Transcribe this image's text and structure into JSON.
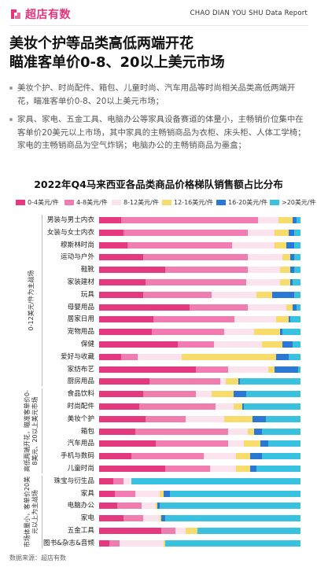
{
  "header": {
    "logo_text": "超店有数",
    "report_tag": "CHAO DIAN YOU SHU Data Report",
    "logo_color": "#e6347c"
  },
  "title": {
    "line1": "美妆个护等品类高低两端开花",
    "line2": "瞄准客单价0-8、20以上美元市场"
  },
  "bullets": [
    "美妆个护、时尚配件、箱包、儿童时尚、汽车用品等时尚相关品类高低两端开花，瞄准客单价0-8、20以上美元市场；",
    "家具、家电、五金工具、电脑办公等家具设备赛道的体量小，主畅销价位集中在客单价20美元以上市场，其中家具的主畅销商品为衣柜、床头柜、人体工学椅；家电的主畅销商品为空气炸锅；电脑办公的主畅销商品为墨盒；"
  ],
  "source": "数据来源：超店有数",
  "chart_data": {
    "type": "bar",
    "orientation": "horizontal",
    "stacked": true,
    "normalized": true,
    "title": "2022年Q4马来西亚各品类商品价格梯队销售额占比分布",
    "legend_position": "top",
    "series": [
      {
        "name": "0-4美元/件",
        "color": "#e5397f"
      },
      {
        "name": "4-8美元/件",
        "color": "#f07cb0"
      },
      {
        "name": "8-12美元/件",
        "color": "#fbe3ee"
      },
      {
        "name": "12-16美元/件",
        "color": "#f7dc6b"
      },
      {
        "name": "16-20美元/件",
        "color": "#2a78d4"
      },
      {
        "name": ">20美元/件",
        "color": "#39c2e0"
      }
    ],
    "groups": [
      {
        "label": "0-12美元/件为主战场",
        "start": 0,
        "end": 13
      },
      {
        "label": "高低两端开花，瞄准客单价0-8美元、20以上美元市场",
        "start": 14,
        "end": 20
      },
      {
        "label": "市场体量小，客单价20美元以上为主战场",
        "start": 21,
        "end": 26
      }
    ],
    "categories": [
      "男装与男士内衣",
      "女装与女士内衣",
      "穆斯林时尚",
      "运动与户外",
      "鞋靴",
      "家装建材",
      "玩具",
      "母婴用品",
      "居家日用",
      "宠物用品",
      "保健",
      "爱好与收藏",
      "家纺布艺",
      "厨房用品",
      "食品饮料",
      "时尚配件",
      "美妆个护",
      "箱包",
      "汽车用品",
      "手机与数码",
      "儿童时尚",
      "珠宝与衍生品",
      "家具",
      "电脑办公",
      "家电",
      "五金工具",
      "图书&杂志&音频"
    ],
    "values": [
      [
        0.11,
        0.68,
        0.1,
        0.07,
        0.02,
        0.02
      ],
      [
        0.12,
        0.62,
        0.13,
        0.07,
        0.03,
        0.03
      ],
      [
        0.14,
        0.52,
        0.21,
        0.06,
        0.04,
        0.03
      ],
      [
        0.22,
        0.52,
        0.17,
        0.04,
        0.02,
        0.03
      ],
      [
        0.33,
        0.41,
        0.16,
        0.05,
        0.02,
        0.03
      ],
      [
        0.23,
        0.5,
        0.17,
        0.05,
        0.01,
        0.04
      ],
      [
        0.22,
        0.34,
        0.22,
        0.08,
        0.11,
        0.03
      ],
      [
        0.45,
        0.29,
        0.19,
        0.03,
        0.02,
        0.02
      ],
      [
        0.27,
        0.4,
        0.21,
        0.06,
        0.01,
        0.05
      ],
      [
        0.26,
        0.36,
        0.15,
        0.13,
        0.01,
        0.09
      ],
      [
        0.39,
        0.18,
        0.24,
        0.1,
        0.05,
        0.04
      ],
      [
        0.11,
        0.08,
        0.22,
        0.47,
        0.06,
        0.06
      ],
      [
        0.48,
        0.16,
        0.2,
        0.03,
        0.12,
        0.01
      ],
      [
        0.25,
        0.35,
        0.03,
        0.06,
        0.01,
        0.3
      ],
      [
        0.22,
        0.26,
        0.08,
        0.11,
        0.06,
        0.27
      ],
      [
        0.2,
        0.38,
        0.09,
        0.04,
        0.01,
        0.28
      ],
      [
        0.23,
        0.2,
        0.19,
        0.14,
        0.07,
        0.17
      ],
      [
        0.18,
        0.46,
        0.1,
        0.03,
        0.04,
        0.19
      ],
      [
        0.28,
        0.36,
        0.08,
        0.08,
        0.04,
        0.16
      ],
      [
        0.16,
        0.36,
        0.16,
        0.07,
        0.06,
        0.19
      ],
      [
        0.33,
        0.22,
        0.13,
        0.07,
        0.03,
        0.22
      ],
      [
        0.07,
        0.05,
        0.04,
        0.0,
        0.0,
        0.84
      ],
      [
        0.08,
        0.1,
        0.12,
        0.02,
        0.03,
        0.65
      ],
      [
        0.09,
        0.12,
        0.07,
        0.01,
        0.01,
        0.7
      ],
      [
        0.12,
        0.1,
        0.08,
        0.01,
        0.02,
        0.67
      ],
      [
        0.31,
        0.07,
        0.05,
        0.06,
        0.0,
        0.51
      ],
      [
        0.05,
        0.05,
        0.22,
        0.01,
        0.0,
        0.67
      ]
    ]
  }
}
